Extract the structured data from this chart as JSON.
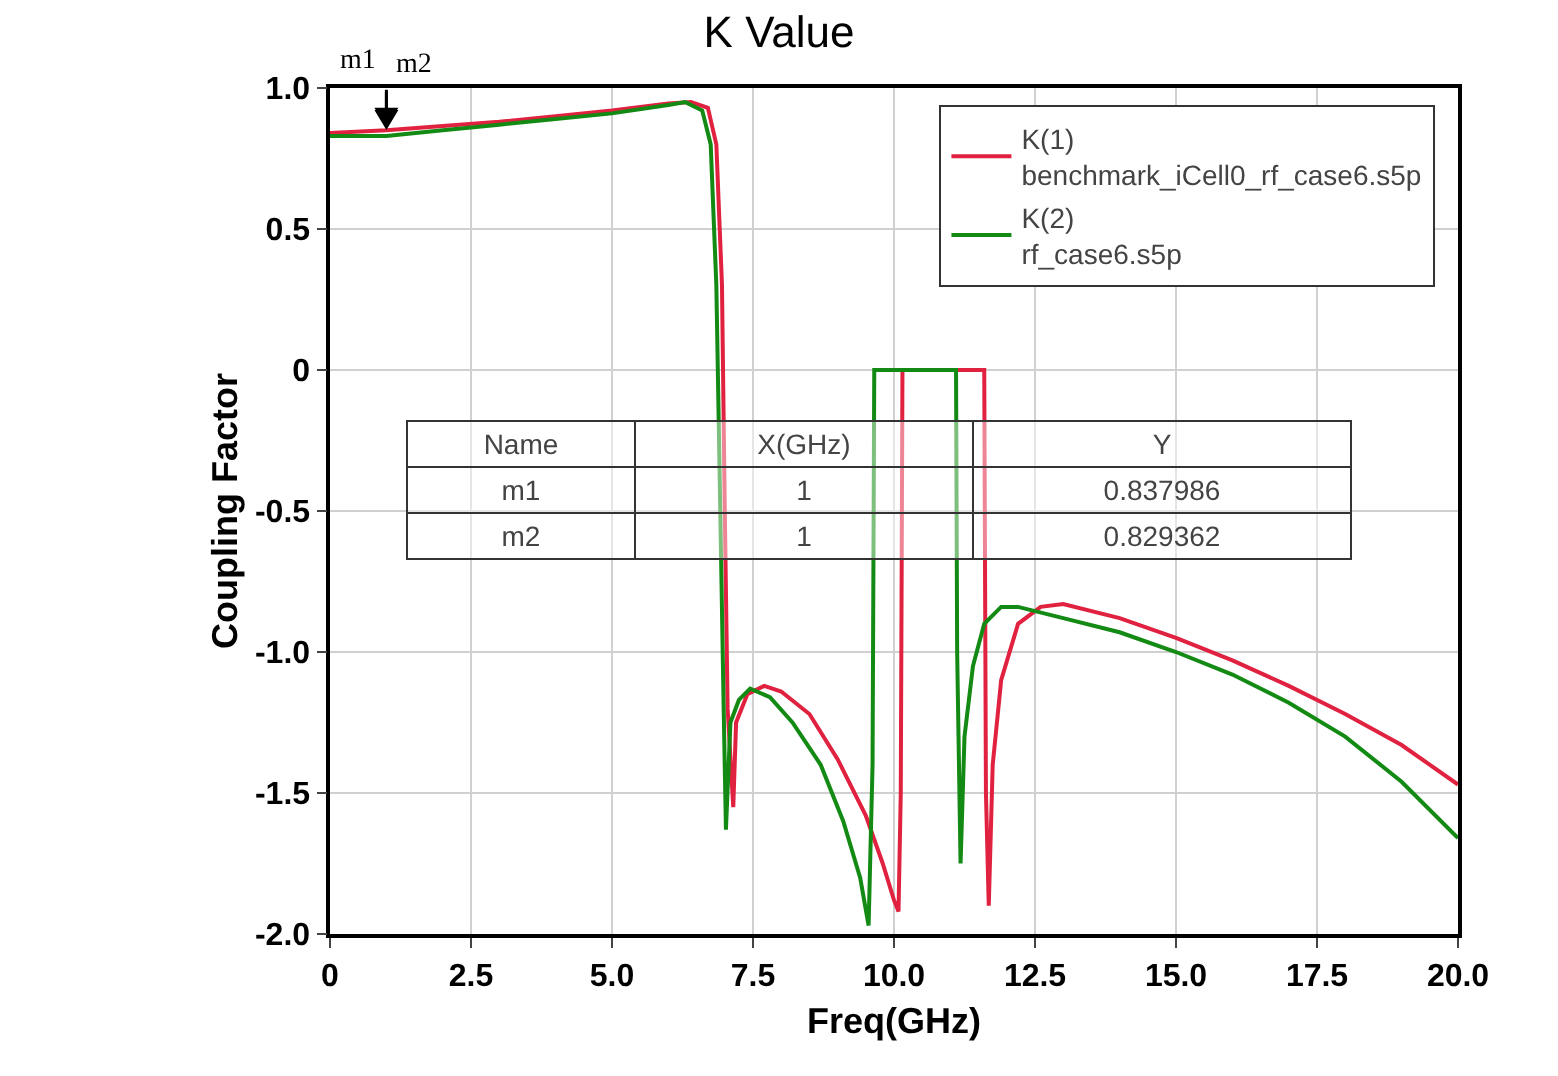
{
  "chart_data": {
    "type": "line",
    "title": "K Value",
    "xlabel": "Freq(GHz)",
    "ylabel": "Coupling Factor",
    "xlim": [
      0,
      20
    ],
    "ylim": [
      -2,
      1
    ],
    "xticks": [
      0,
      2.5,
      {
        "value": 5,
        "label": "5.0"
      },
      7.5,
      {
        "value": 10,
        "label": "10.0"
      },
      12.5,
      {
        "value": 15,
        "label": "15.0"
      },
      17.5,
      {
        "value": 20,
        "label": "20.0"
      }
    ],
    "yticks": [
      {
        "value": -2,
        "label": "-2.0"
      },
      {
        "value": -1.5,
        "label": "-1.5"
      },
      {
        "value": -1,
        "label": "-1.0"
      },
      {
        "value": -0.5,
        "label": "-0.5"
      },
      0,
      {
        "value": 0.5,
        "label": "0.5"
      },
      {
        "value": 1,
        "label": "1.0"
      }
    ],
    "grid": true,
    "legend": "top right",
    "marker": "none",
    "line_style": "solid",
    "series": [
      {
        "name": "K(1)\nbenchmark_iCell0_rf_case6.s5p",
        "color": "#e0213f",
        "x": [
          0,
          1,
          2,
          3,
          4,
          5,
          6,
          6.4,
          6.7,
          6.85,
          6.95,
          7.0,
          7.05,
          7.15,
          7.2,
          7.4,
          7.7,
          8.0,
          8.5,
          9.0,
          9.5,
          9.8,
          10.0,
          10.08,
          10.12,
          10.15,
          11.6,
          11.63,
          11.68,
          11.75,
          11.9,
          12.2,
          12.6,
          13.0,
          14,
          15,
          16,
          17,
          18,
          19,
          20
        ],
        "values": [
          0.84,
          0.85,
          0.865,
          0.88,
          0.9,
          0.92,
          0.945,
          0.95,
          0.93,
          0.8,
          0.3,
          -0.5,
          -1.2,
          -1.55,
          -1.25,
          -1.15,
          -1.12,
          -1.14,
          -1.22,
          -1.38,
          -1.58,
          -1.75,
          -1.88,
          -1.92,
          -1.5,
          0,
          0,
          -1.5,
          -1.9,
          -1.4,
          -1.1,
          -0.9,
          -0.84,
          -0.83,
          -0.88,
          -0.95,
          -1.03,
          -1.12,
          -1.22,
          -1.33,
          -1.47
        ]
      },
      {
        "name": "K(2)\nrf_case6.s5p",
        "color": "#138a13",
        "x": [
          0,
          1,
          2,
          3,
          4,
          5,
          6,
          6.3,
          6.6,
          6.75,
          6.85,
          6.92,
          6.98,
          7.02,
          7.1,
          7.25,
          7.45,
          7.8,
          8.2,
          8.7,
          9.1,
          9.4,
          9.55,
          9.62,
          9.65,
          11.1,
          11.12,
          11.18,
          11.25,
          11.4,
          11.6,
          11.9,
          12.2,
          13,
          14,
          15,
          16,
          17,
          18,
          19,
          20
        ],
        "values": [
          0.83,
          0.83,
          0.85,
          0.87,
          0.89,
          0.91,
          0.94,
          0.95,
          0.92,
          0.8,
          0.3,
          -0.5,
          -1.2,
          -1.63,
          -1.25,
          -1.17,
          -1.13,
          -1.16,
          -1.25,
          -1.4,
          -1.6,
          -1.8,
          -1.97,
          -1.4,
          0,
          0,
          -1.0,
          -1.75,
          -1.3,
          -1.05,
          -0.9,
          -0.84,
          -0.84,
          -0.88,
          -0.93,
          -1.0,
          -1.08,
          -1.18,
          -1.3,
          -1.46,
          -1.66
        ]
      }
    ],
    "annotations": [
      {
        "text": "m1",
        "x": 1,
        "y": 0.837986
      },
      {
        "text": "m2",
        "x": 1,
        "y": 0.829362
      },
      "Name",
      "X(GHz)",
      "Y",
      "m1",
      "1",
      "0.837986",
      "m2",
      "1",
      "0.829362"
    ]
  }
}
